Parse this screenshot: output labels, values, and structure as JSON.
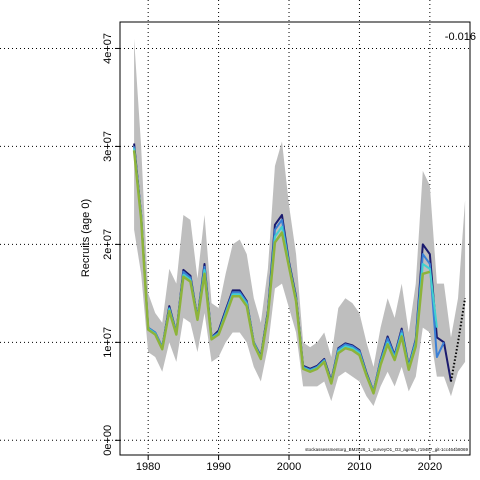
{
  "chart_data": {
    "type": "line",
    "ylabel": "Recruits (age 0)",
    "annotation": "-0.016",
    "footnote": "stockassessmentorg_BM2026_1_surveyO1_O3_age5a_r19487_git-1cc464b8069",
    "x": [
      1978,
      1979,
      1980,
      1981,
      1982,
      1983,
      1984,
      1985,
      1986,
      1987,
      1988,
      1989,
      1990,
      1991,
      1992,
      1993,
      1994,
      1995,
      1996,
      1997,
      1998,
      1999,
      2000,
      2001,
      2002,
      2003,
      2004,
      2005,
      2006,
      2007,
      2008,
      2009,
      2010,
      2011,
      2012,
      2013,
      2014,
      2015,
      2016,
      2017,
      2018,
      2019,
      2020,
      2021,
      2022,
      2023,
      2024,
      2025
    ],
    "band": {
      "color": "#bebebe",
      "upper": [
        41000000.0,
        30000000.0,
        15000000.0,
        13000000.0,
        12000000.0,
        17500000.0,
        16000000.0,
        23000000.0,
        22500000.0,
        16500000.0,
        23000000.0,
        14000000.0,
        13500000.0,
        17000000.0,
        20000000.0,
        20500000.0,
        19000000.0,
        14500000.0,
        12000000.0,
        17500000.0,
        28000000.0,
        30500000.0,
        24000000.0,
        19000000.0,
        10000000.0,
        9500000.0,
        10000000.0,
        11000000.0,
        8500000.0,
        13500000.0,
        14500000.0,
        14000000.0,
        13000000.0,
        10000000.0,
        7500000.0,
        11500000.0,
        14500000.0,
        12500000.0,
        16000000.0,
        11000000.0,
        16000000.0,
        27500000.0,
        26000000.0,
        16000000.0,
        16000000.0,
        10500000.0,
        14500000.0,
        24500000.0
      ],
      "lower": [
        21500000.0,
        17000000.0,
        9000000.0,
        8500000.0,
        7000000.0,
        10000000.0,
        8000000.0,
        12500000.0,
        12000000.0,
        9000000.0,
        13000000.0,
        8000000.0,
        8500000.0,
        10000000.0,
        11000000.0,
        11000000.0,
        10000000.0,
        7500000.0,
        6000000.0,
        9500000.0,
        15500000.0,
        16000000.0,
        13500000.0,
        11000000.0,
        5500000.0,
        5500000.0,
        5500000.0,
        6000000.0,
        4000000.0,
        6500000.0,
        7000000.0,
        6500000.0,
        6000000.0,
        4500000.0,
        3500000.0,
        5500000.0,
        7000000.0,
        5500000.0,
        7500000.0,
        5000000.0,
        6500000.0,
        11500000.0,
        11000000.0,
        6500000.0,
        6500000.0,
        4500000.0,
        7000000.0,
        8000000.0
      ]
    },
    "series": [
      {
        "color": "#1a1a6e",
        "linestyle": "solid",
        "values": [
          30300000.0,
          23000000.0,
          11500000.0,
          11000000.0,
          9500000.0,
          13700000.0,
          11000000.0,
          17400000.0,
          16800000.0,
          12500000.0,
          18000000.0,
          10500000.0,
          11200000.0,
          13300000.0,
          15300000.0,
          15300000.0,
          14200000.0,
          10000000.0,
          8600000.0,
          13200000.0,
          22000000.0,
          23000000.0,
          18200000.0,
          14700000.0,
          7600000.0,
          7300000.0,
          7600000.0,
          8300000.0,
          6100000.0,
          9400000.0,
          9900000.0,
          9700000.0,
          9200000.0,
          6900000.0,
          5000000.0,
          8200000.0,
          10600000.0,
          8700000.0,
          11400000.0,
          7600000.0,
          10300000.0,
          20000000.0,
          19000000.0,
          10500000.0,
          10000000.0,
          6000000.0,
          null,
          null
        ]
      },
      {
        "color": "#000000",
        "linestyle": "dotted",
        "values": [
          null,
          null,
          null,
          null,
          null,
          null,
          null,
          null,
          null,
          null,
          null,
          null,
          null,
          null,
          null,
          null,
          null,
          null,
          null,
          null,
          null,
          null,
          null,
          null,
          null,
          null,
          null,
          null,
          null,
          null,
          null,
          null,
          null,
          null,
          null,
          null,
          null,
          null,
          null,
          null,
          null,
          null,
          null,
          null,
          null,
          6000000.0,
          10000000.0,
          14500000.0
        ]
      },
      {
        "color": "#3a7fd5",
        "linestyle": "solid",
        "values": [
          30000000.0,
          23000000.0,
          11500000.0,
          11000000.0,
          9500000.0,
          13500000.0,
          11000000.0,
          17200000.0,
          16600000.0,
          12500000.0,
          17700000.0,
          10500000.0,
          11000000.0,
          13100000.0,
          15100000.0,
          15100000.0,
          14100000.0,
          10000000.0,
          8500000.0,
          13000000.0,
          21500000.0,
          22500000.0,
          18000000.0,
          14500000.0,
          7500000.0,
          7200000.0,
          7500000.0,
          8200000.0,
          6000000.0,
          9300000.0,
          9800000.0,
          9600000.0,
          9100000.0,
          6800000.0,
          5000000.0,
          8100000.0,
          10400000.0,
          8600000.0,
          11200000.0,
          7500000.0,
          10200000.0,
          19000000.0,
          18000000.0,
          8500000.0,
          10000000.0,
          null,
          null,
          null
        ]
      },
      {
        "color": "#40d0d0",
        "linestyle": "solid",
        "values": [
          29800000.0,
          22800000.0,
          11400000.0,
          10900000.0,
          9400000.0,
          13400000.0,
          10900000.0,
          16900000.0,
          16400000.0,
          12400000.0,
          17400000.0,
          10400000.0,
          10900000.0,
          12900000.0,
          14900000.0,
          14900000.0,
          13900000.0,
          9900000.0,
          8400000.0,
          12900000.0,
          20800000.0,
          21800000.0,
          17900000.0,
          14400000.0,
          7400000.0,
          7100000.0,
          7400000.0,
          8100000.0,
          5900000.0,
          9100000.0,
          9600000.0,
          9400000.0,
          8900000.0,
          6700000.0,
          4900000.0,
          7900000.0,
          10000000.0,
          8400000.0,
          10900000.0,
          7400000.0,
          9900000.0,
          18000000.0,
          17500000.0,
          11500000.0,
          null,
          null,
          null,
          null
        ]
      },
      {
        "color": "#8db33a",
        "linestyle": "solid",
        "values": [
          29600000.0,
          22600000.0,
          11300000.0,
          10800000.0,
          9300000.0,
          13200000.0,
          10800000.0,
          16700000.0,
          16200000.0,
          12300000.0,
          17000000.0,
          10300000.0,
          10800000.0,
          12700000.0,
          14700000.0,
          14700000.0,
          13700000.0,
          9800000.0,
          8300000.0,
          12700000.0,
          20200000.0,
          21200000.0,
          17700000.0,
          14200000.0,
          7300000.0,
          7000000.0,
          7300000.0,
          8000000.0,
          5800000.0,
          8900000.0,
          9400000.0,
          9200000.0,
          8700000.0,
          6600000.0,
          4800000.0,
          7700000.0,
          9800000.0,
          8200000.0,
          10600000.0,
          7200000.0,
          9600000.0,
          17000000.0,
          17200000.0,
          null,
          null,
          null,
          null,
          null
        ]
      }
    ],
    "xlim": [
      1976,
      2025.7
    ],
    "xticks": [
      1980,
      1990,
      2000,
      2010,
      2020
    ],
    "ylim": [
      -1500000,
      42700000
    ],
    "yticks": [
      {
        "value": 0,
        "label": "0e+00"
      },
      {
        "value": 10000000,
        "label": "1e+07"
      },
      {
        "value": 20000000,
        "label": "2e+07"
      },
      {
        "value": 30000000,
        "label": "3e+07"
      },
      {
        "value": 40000000,
        "label": "4e+07"
      }
    ],
    "grid": true
  }
}
